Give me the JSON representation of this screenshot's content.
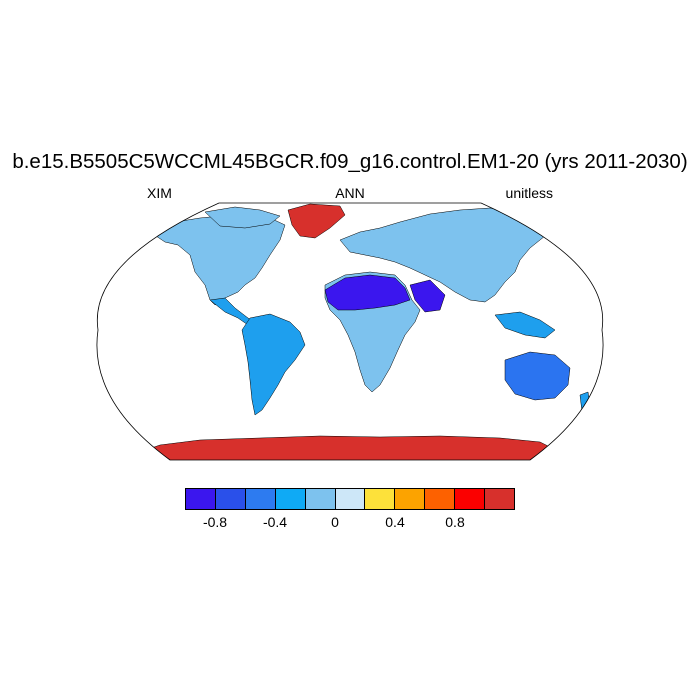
{
  "title": "b.e15.B5505C5WCCML45BGCR.f09_g16.control.EM1-20 (yrs 2011-2030)",
  "subtitle_left": "XIM",
  "subtitle_center": "ANN",
  "subtitle_right": "unitless",
  "map": {
    "projection": "Robinson",
    "colors": {
      "ocean": "#ffffff",
      "antarctica": "#d7302c",
      "greenland": "#d7302c",
      "sahara": "#3b16ee",
      "australia": "#2b74f0",
      "americas_north": "#7dc2ee",
      "americas_south": "#1e9fee",
      "europe_asia": "#7dc2ee",
      "africa_central": "#7dc2ee"
    }
  },
  "colorbar": {
    "colors": [
      "#3b16ee",
      "#2a50ea",
      "#2d7bf0",
      "#0faaf5",
      "#7dc2ee",
      "#cde7f8",
      "#fde13a",
      "#fca300",
      "#fd6100",
      "#fb0000",
      "#d7302c"
    ],
    "labels": [
      "-0.8",
      "-0.4",
      "0",
      "0.4",
      "0.8"
    ]
  }
}
